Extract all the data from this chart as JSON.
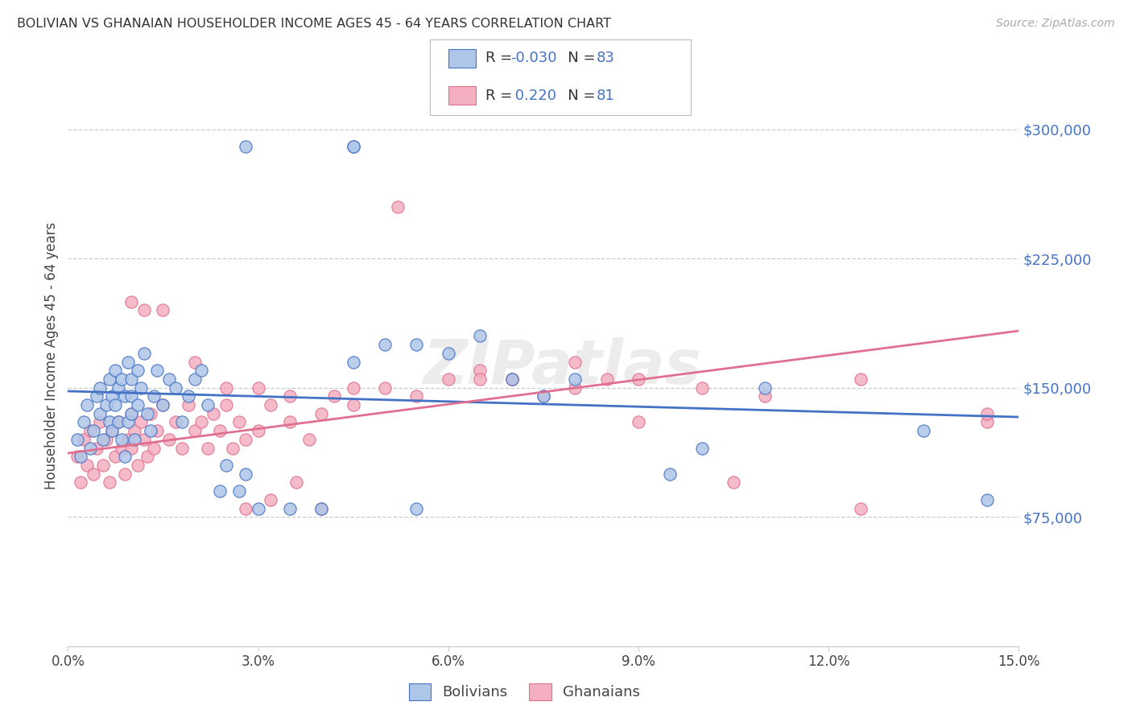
{
  "title": "BOLIVIAN VS GHANAIAN HOUSEHOLDER INCOME AGES 45 - 64 YEARS CORRELATION CHART",
  "source": "Source: ZipAtlas.com",
  "ylabel": "Householder Income Ages 45 - 64 years",
  "ytick_labels": [
    "$75,000",
    "$150,000",
    "$225,000",
    "$300,000"
  ],
  "ytick_values": [
    75000,
    150000,
    225000,
    300000
  ],
  "xlim": [
    0.0,
    15.0
  ],
  "ylim": [
    0,
    337500
  ],
  "bolivian_color": "#aec6e8",
  "ghanaian_color": "#f4afc0",
  "blue_line_color": "#4472c4",
  "pink_line_color": "#e07090",
  "R_bolivian": -0.03,
  "N_bolivian": 83,
  "R_ghanaian": 0.22,
  "N_ghanaian": 81,
  "watermark": "ZIPatlas",
  "blue_trend": [
    148000,
    133000
  ],
  "pink_trend": [
    112000,
    183000
  ],
  "bolivian_scatter_x": [
    0.15,
    0.2,
    0.25,
    0.3,
    0.35,
    0.4,
    0.45,
    0.5,
    0.5,
    0.55,
    0.6,
    0.65,
    0.65,
    0.7,
    0.7,
    0.75,
    0.75,
    0.8,
    0.8,
    0.85,
    0.85,
    0.9,
    0.9,
    0.95,
    0.95,
    1.0,
    1.0,
    1.0,
    1.05,
    1.1,
    1.1,
    1.15,
    1.2,
    1.25,
    1.3,
    1.35,
    1.4,
    1.5,
    1.6,
    1.7,
    1.8,
    1.9,
    2.0,
    2.1,
    2.2,
    2.4,
    2.5,
    2.7,
    2.8,
    3.0,
    3.5,
    4.0,
    4.5,
    5.0,
    5.5,
    5.5,
    6.0,
    6.5,
    7.0,
    7.5,
    8.0,
    9.5,
    10.0,
    11.0,
    13.5,
    14.5,
    2.8,
    4.5,
    4.5
  ],
  "bolivian_scatter_y": [
    120000,
    110000,
    130000,
    140000,
    115000,
    125000,
    145000,
    135000,
    150000,
    120000,
    140000,
    155000,
    130000,
    145000,
    125000,
    160000,
    140000,
    130000,
    150000,
    120000,
    155000,
    145000,
    110000,
    165000,
    130000,
    145000,
    155000,
    135000,
    120000,
    160000,
    140000,
    150000,
    170000,
    135000,
    125000,
    145000,
    160000,
    140000,
    155000,
    150000,
    130000,
    145000,
    155000,
    160000,
    140000,
    90000,
    105000,
    90000,
    100000,
    80000,
    80000,
    80000,
    165000,
    175000,
    80000,
    175000,
    170000,
    180000,
    155000,
    145000,
    155000,
    100000,
    115000,
    150000,
    125000,
    85000,
    290000,
    290000,
    290000
  ],
  "ghanaian_scatter_x": [
    0.15,
    0.2,
    0.25,
    0.3,
    0.35,
    0.4,
    0.45,
    0.5,
    0.55,
    0.6,
    0.65,
    0.7,
    0.75,
    0.8,
    0.85,
    0.9,
    0.95,
    1.0,
    1.0,
    1.05,
    1.1,
    1.15,
    1.2,
    1.25,
    1.3,
    1.35,
    1.4,
    1.5,
    1.6,
    1.7,
    1.8,
    1.9,
    2.0,
    2.1,
    2.2,
    2.3,
    2.4,
    2.5,
    2.6,
    2.7,
    2.8,
    3.0,
    3.2,
    3.5,
    3.8,
    4.0,
    4.2,
    4.5,
    5.0,
    5.5,
    6.0,
    6.5,
    7.0,
    7.5,
    8.0,
    8.5,
    9.0,
    10.0,
    11.0,
    12.5,
    14.5,
    2.8,
    3.2,
    3.6,
    4.0,
    5.2,
    6.5,
    7.0,
    8.0,
    9.0,
    10.5,
    12.5,
    14.5,
    1.0,
    1.2,
    1.5,
    2.0,
    2.5,
    3.0,
    3.5,
    4.5
  ],
  "ghanaian_scatter_y": [
    110000,
    95000,
    120000,
    105000,
    125000,
    100000,
    115000,
    130000,
    105000,
    120000,
    95000,
    125000,
    110000,
    130000,
    115000,
    100000,
    120000,
    135000,
    115000,
    125000,
    105000,
    130000,
    120000,
    110000,
    135000,
    115000,
    125000,
    140000,
    120000,
    130000,
    115000,
    140000,
    125000,
    130000,
    115000,
    135000,
    125000,
    140000,
    115000,
    130000,
    120000,
    125000,
    140000,
    130000,
    120000,
    135000,
    145000,
    140000,
    150000,
    145000,
    155000,
    160000,
    155000,
    145000,
    150000,
    155000,
    130000,
    150000,
    145000,
    155000,
    130000,
    80000,
    85000,
    95000,
    80000,
    255000,
    155000,
    155000,
    165000,
    155000,
    95000,
    80000,
    135000,
    200000,
    195000,
    195000,
    165000,
    150000,
    150000,
    145000,
    150000
  ]
}
